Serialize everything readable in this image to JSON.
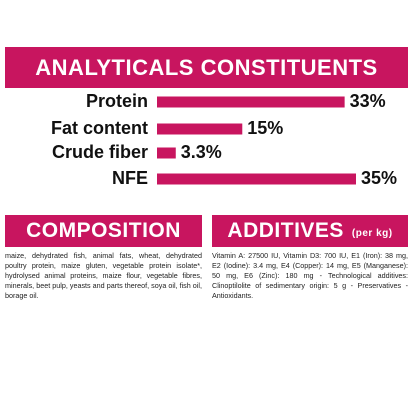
{
  "header": {
    "title": "ANALYTICALS CONSTITUENTS"
  },
  "chart_data": {
    "type": "bar",
    "orientation": "horizontal",
    "categories": [
      "Protein",
      "Fat content",
      "Crude fiber",
      "NFE"
    ],
    "values": [
      33,
      15,
      3.3,
      35
    ],
    "value_labels": [
      "33%",
      "15%",
      "3.3%",
      "35%"
    ],
    "color": "#c8155f"
  },
  "composition": {
    "title": "COMPOSITION",
    "text": "maize, dehydrated fish, animal fats, wheat, dehydrated poultry protein, maize gluten, vegetable protein isolate*, hydrolysed animal proteins, maize flour, vegetable fibres, minerals, beet pulp, yeasts and parts thereof, soya oil, fish oil, borage oil."
  },
  "additives": {
    "title": "ADDITIVES",
    "subtitle": "(per kg)",
    "text": "Vitamin A: 27500 IU, Vitamin D3: 700 IU, E1 (Iron): 38 mg, E2 (Iodine): 3.4 mg, E4 (Copper): 14 mg, E5 (Manganese): 50 mg, E6 (Zinc): 180 mg - Technological additives: Clinoptilolite of sedimentary origin: 5 g - Preservatives - Antioxidants."
  }
}
